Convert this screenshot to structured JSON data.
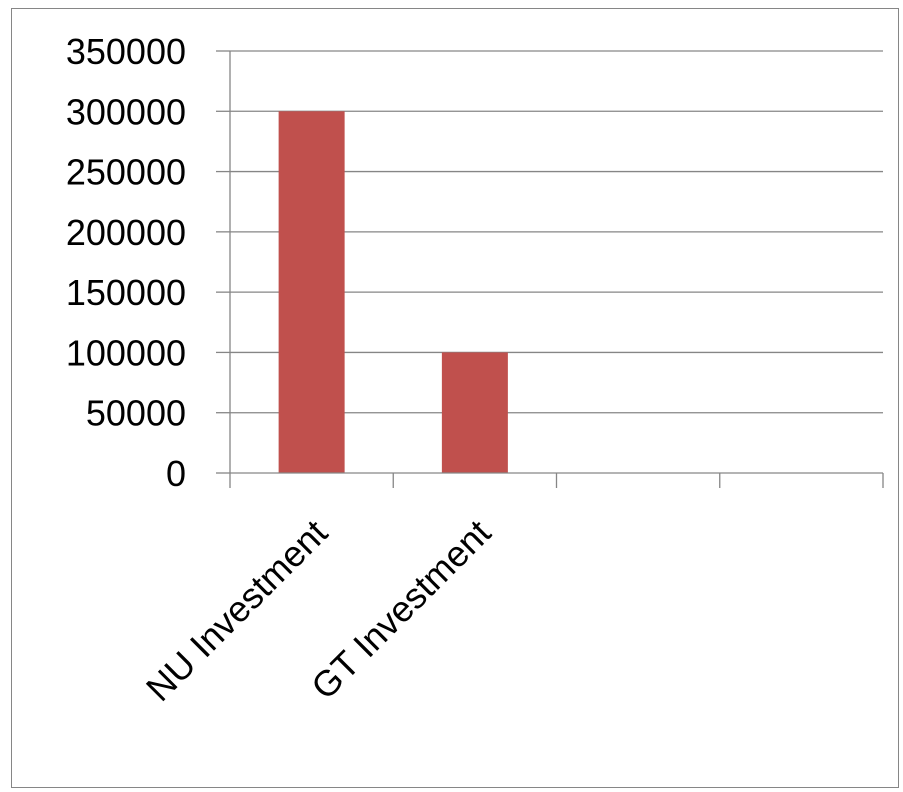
{
  "chart_data": {
    "type": "bar",
    "categories": [
      "NU Investment",
      "GT Investment",
      "",
      ""
    ],
    "series": [
      {
        "values": [
          300000,
          100000,
          null,
          null
        ],
        "color": "#c0504d"
      }
    ],
    "ylim": [
      0,
      350000
    ],
    "yticks": [
      0,
      50000,
      100000,
      150000,
      200000,
      250000,
      300000,
      350000
    ],
    "grid": true,
    "title": "",
    "xlabel": "",
    "ylabel": ""
  },
  "colors": {
    "bar": "#c0504d",
    "grid": "#868686",
    "axis": "#868686",
    "frame": "#868686"
  }
}
